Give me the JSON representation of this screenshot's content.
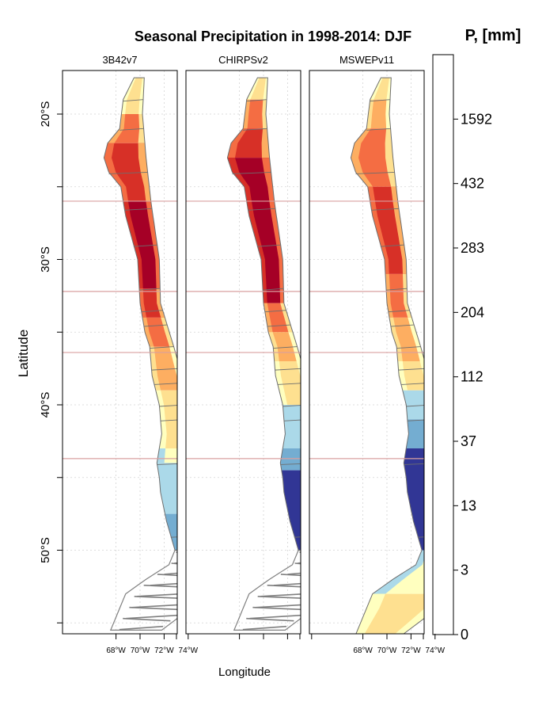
{
  "title": "Seasonal Precipitation in 1998-2014: DJF",
  "legend": {
    "title": "P, [mm]",
    "labels": [
      "0",
      "3",
      "13",
      "37",
      "112",
      "204",
      "283",
      "432",
      "1592"
    ],
    "colors": [
      "#a50026",
      "#d73027",
      "#f46d43",
      "#fdae61",
      "#fee090",
      "#ffffbf",
      "#abd9e9",
      "#74add1",
      "#313695"
    ]
  },
  "panels": [
    {
      "name": "3B42v7",
      "x_ticks": [
        "74°W",
        "72°W",
        "70°W",
        "68°W"
      ]
    },
    {
      "name": "CHIRPSv2",
      "x_ticks": []
    },
    {
      "name": "MSWEPv11",
      "x_ticks": [
        "74°W",
        "72°W",
        "70°W",
        "68°W"
      ]
    }
  ],
  "axes": {
    "ylabel": "Latitude",
    "xlabel": "Longitude",
    "y_ticks": [
      "20°S",
      "30°S",
      "40°S",
      "50°S"
    ]
  },
  "colors": {
    "boundary": "#7f7f7f",
    "reference_line": "#d9a0a0",
    "grid": "#d3d3d3"
  }
}
